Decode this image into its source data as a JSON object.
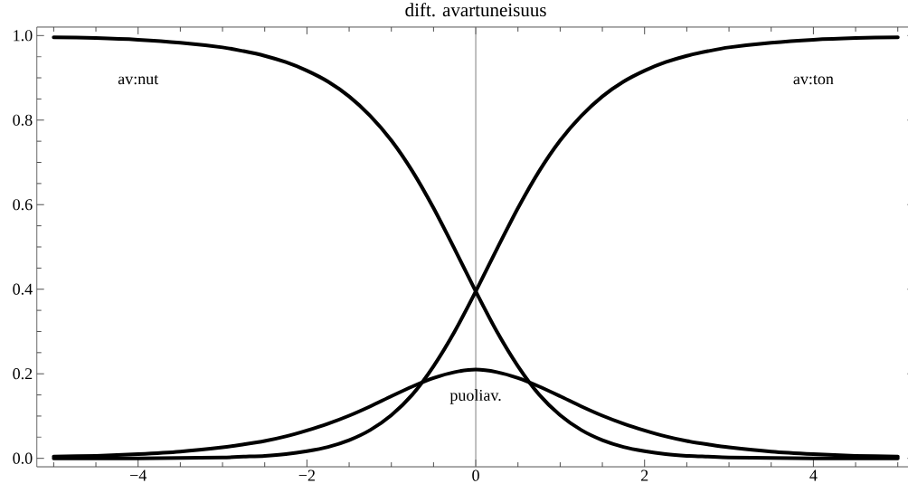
{
  "chart_data": {
    "type": "line",
    "title": "dift. avartuneisuus",
    "x": [
      -5,
      -4.5,
      -4,
      -3.5,
      -3,
      -2.75,
      -2.5,
      -2.25,
      -2,
      -1.75,
      -1.5,
      -1.25,
      -1,
      -0.75,
      -0.5,
      -0.25,
      0,
      0.25,
      0.5,
      0.75,
      1,
      1.25,
      1.5,
      1.75,
      2,
      2.25,
      2.5,
      2.75,
      3,
      3.5,
      4,
      4.5,
      5
    ],
    "series": [
      {
        "name": "av:nut",
        "color": "#000000",
        "values": [
          0.996,
          0.994,
          0.99,
          0.983,
          0.972,
          0.963,
          0.952,
          0.937,
          0.917,
          0.891,
          0.856,
          0.81,
          0.752,
          0.679,
          0.592,
          0.495,
          0.395,
          0.3,
          0.218,
          0.151,
          0.102,
          0.067,
          0.043,
          0.027,
          0.017,
          0.01,
          0.006,
          0.004,
          0.002,
          0.001,
          0,
          0,
          0
        ]
      },
      {
        "name": "puoliav.",
        "color": "#000000",
        "values": [
          0.004,
          0.006,
          0.01,
          0.016,
          0.026,
          0.033,
          0.041,
          0.052,
          0.066,
          0.082,
          0.101,
          0.123,
          0.147,
          0.17,
          0.19,
          0.204,
          0.21,
          0.204,
          0.19,
          0.17,
          0.147,
          0.123,
          0.101,
          0.082,
          0.066,
          0.052,
          0.041,
          0.033,
          0.026,
          0.016,
          0.01,
          0.006,
          0.004
        ]
      },
      {
        "name": "av:ton",
        "color": "#000000",
        "values": [
          0,
          0,
          0,
          0.001,
          0.002,
          0.004,
          0.006,
          0.01,
          0.017,
          0.027,
          0.043,
          0.067,
          0.102,
          0.151,
          0.218,
          0.3,
          0.395,
          0.495,
          0.592,
          0.679,
          0.752,
          0.81,
          0.856,
          0.891,
          0.917,
          0.937,
          0.952,
          0.963,
          0.972,
          0.983,
          0.99,
          0.994,
          0.996
        ]
      }
    ],
    "xlim": [
      -5.2,
      5.2
    ],
    "ylim": [
      -0.02,
      1.02
    ],
    "xticks": [
      {
        "value": -5,
        "label": null
      },
      {
        "value": -4.5,
        "label": null
      },
      {
        "value": -4,
        "label": "−4"
      },
      {
        "value": -3.5,
        "label": null
      },
      {
        "value": -3,
        "label": null
      },
      {
        "value": -2.5,
        "label": null
      },
      {
        "value": -2,
        "label": "−2"
      },
      {
        "value": -1.5,
        "label": null
      },
      {
        "value": -1,
        "label": null
      },
      {
        "value": -0.5,
        "label": null
      },
      0,
      {
        "value": 0.5,
        "label": null
      },
      {
        "value": 1,
        "label": null
      },
      {
        "value": 1.5,
        "label": null
      },
      2,
      {
        "value": 2.5,
        "label": null
      },
      {
        "value": 3,
        "label": null
      },
      {
        "value": 3.5,
        "label": null
      },
      4,
      {
        "value": 4.5,
        "label": null
      },
      {
        "value": 5,
        "label": null
      }
    ],
    "yticks": [
      {
        "value": 0,
        "label": "0.0"
      },
      {
        "value": 0.05,
        "label": null
      },
      {
        "value": 0.1,
        "label": null
      },
      {
        "value": 0.15,
        "label": null
      },
      0.2,
      {
        "value": 0.25,
        "label": null
      },
      {
        "value": 0.3,
        "label": null
      },
      {
        "value": 0.35,
        "label": null
      },
      0.4,
      {
        "value": 0.45,
        "label": null
      },
      {
        "value": 0.5,
        "label": null
      },
      {
        "value": 0.55,
        "label": null
      },
      0.6,
      {
        "value": 0.65,
        "label": null
      },
      {
        "value": 0.7,
        "label": null
      },
      {
        "value": 0.75,
        "label": null
      },
      0.8,
      {
        "value": 0.85,
        "label": null
      },
      {
        "value": 0.9,
        "label": null
      },
      {
        "value": 0.95,
        "label": null
      },
      {
        "value": 1,
        "label": "1.0"
      }
    ],
    "ref_lines": [
      {
        "axis": "x",
        "value": 0,
        "color": "#808080"
      }
    ],
    "line_style": "solid"
  }
}
